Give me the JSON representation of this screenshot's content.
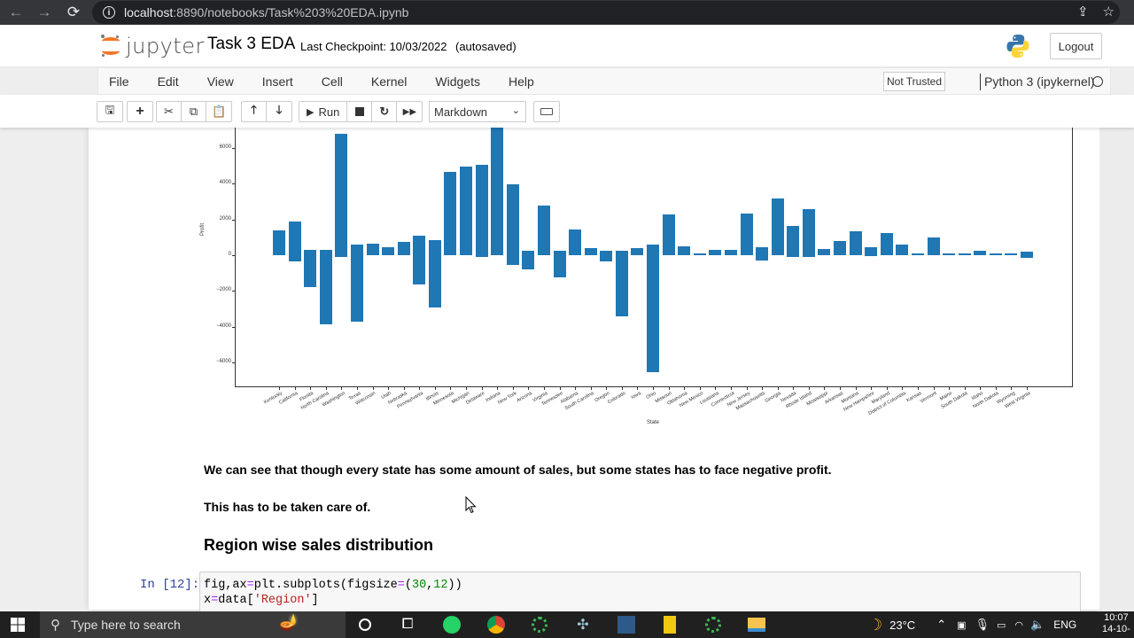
{
  "browser": {
    "url_host": "localhost",
    "url_rest": ":8890/notebooks/Task%203%20EDA.ipynb",
    "back_icon": "←",
    "forward_icon": "→",
    "reload_icon": "⟳"
  },
  "header": {
    "logo_text": "jupyter",
    "notebook_name": "Task 3 EDA",
    "checkpoint": "Last Checkpoint: 10/03/2022",
    "autosave": "(autosaved)",
    "logout_label": "Logout"
  },
  "menubar": {
    "items": [
      "File",
      "Edit",
      "View",
      "Insert",
      "Cell",
      "Kernel",
      "Widgets",
      "Help"
    ],
    "trust_label": "Not Trusted",
    "kernel_name": "Python 3 (ipykernel)"
  },
  "toolbar": {
    "run_label": "Run",
    "cell_type": "Markdown"
  },
  "chart_data": {
    "type": "bar",
    "title": "",
    "xlabel": "State",
    "ylabel": "Profit",
    "ylim": [
      -7400,
      7200
    ],
    "yticks": [
      -6000,
      -4000,
      -2000,
      0,
      2000,
      4000,
      6000
    ],
    "grid": false,
    "bar_color": "#1f77b4",
    "note": "Floating bars: each state's bar spans from its minimum to maximum plotted profit value (overlapping bars per state).",
    "categories": [
      "Kentucky",
      "California",
      "Florida",
      "North Carolina",
      "Washington",
      "Texas",
      "Wisconsin",
      "Utah",
      "Nebraska",
      "Pennsylvania",
      "Illinois",
      "Minnesota",
      "Michigan",
      "Delaware",
      "Indiana",
      "New York",
      "Arizona",
      "Virginia",
      "Tennessee",
      "Alabama",
      "South Carolina",
      "Oregon",
      "Colorado",
      "Iowa",
      "Ohio",
      "Missouri",
      "Oklahoma",
      "New Mexico",
      "Louisiana",
      "Connecticut",
      "New Jersey",
      "Massachusetts",
      "Georgia",
      "Nevada",
      "Rhode Island",
      "Mississippi",
      "Arkansas",
      "Montana",
      "New Hampshire",
      "Maryland",
      "District of Columbia",
      "Kansas",
      "Vermont",
      "Maine",
      "South Dakota",
      "Idaho",
      "North Dakota",
      "Wyoming",
      "West Virginia"
    ],
    "bar_top": [
      1400,
      1900,
      300,
      300,
      6800,
      600,
      650,
      450,
      750,
      1100,
      850,
      4650,
      4950,
      5050,
      7200,
      3950,
      250,
      2800,
      250,
      1450,
      400,
      250,
      250,
      400,
      600,
      2300,
      500,
      100,
      300,
      300,
      2350,
      450,
      3150,
      1650,
      2600,
      350,
      800,
      1350,
      450,
      1250,
      600,
      100,
      1000,
      100,
      100,
      250,
      100,
      100,
      200
    ],
    "bar_bottom": [
      0,
      -350,
      -1800,
      -3850,
      -100,
      -3700,
      0,
      0,
      0,
      -1650,
      -2950,
      0,
      0,
      -100,
      0,
      -550,
      -800,
      0,
      -1250,
      0,
      0,
      -350,
      -3400,
      0,
      -6550,
      0,
      0,
      0,
      0,
      0,
      0,
      -300,
      0,
      -100,
      -100,
      0,
      0,
      0,
      -50,
      0,
      0,
      0,
      0,
      0,
      0,
      0,
      0,
      0,
      -150
    ]
  },
  "markdown": {
    "line1": "We can see that though every state has some amount of sales, but some states has to face negative profit.",
    "line2": "This has to be taken care of.",
    "heading": "Region wise sales distribution"
  },
  "code_cell": {
    "prompt": "In [12]:",
    "lines": [
      "fig,ax=plt.subplots(figsize=(30,12))",
      "x=data['Region']"
    ]
  },
  "taskbar": {
    "search_placeholder": "Type here to search",
    "weather": "23°C",
    "language": "ENG",
    "time": "10:07",
    "date": "14-10-"
  }
}
